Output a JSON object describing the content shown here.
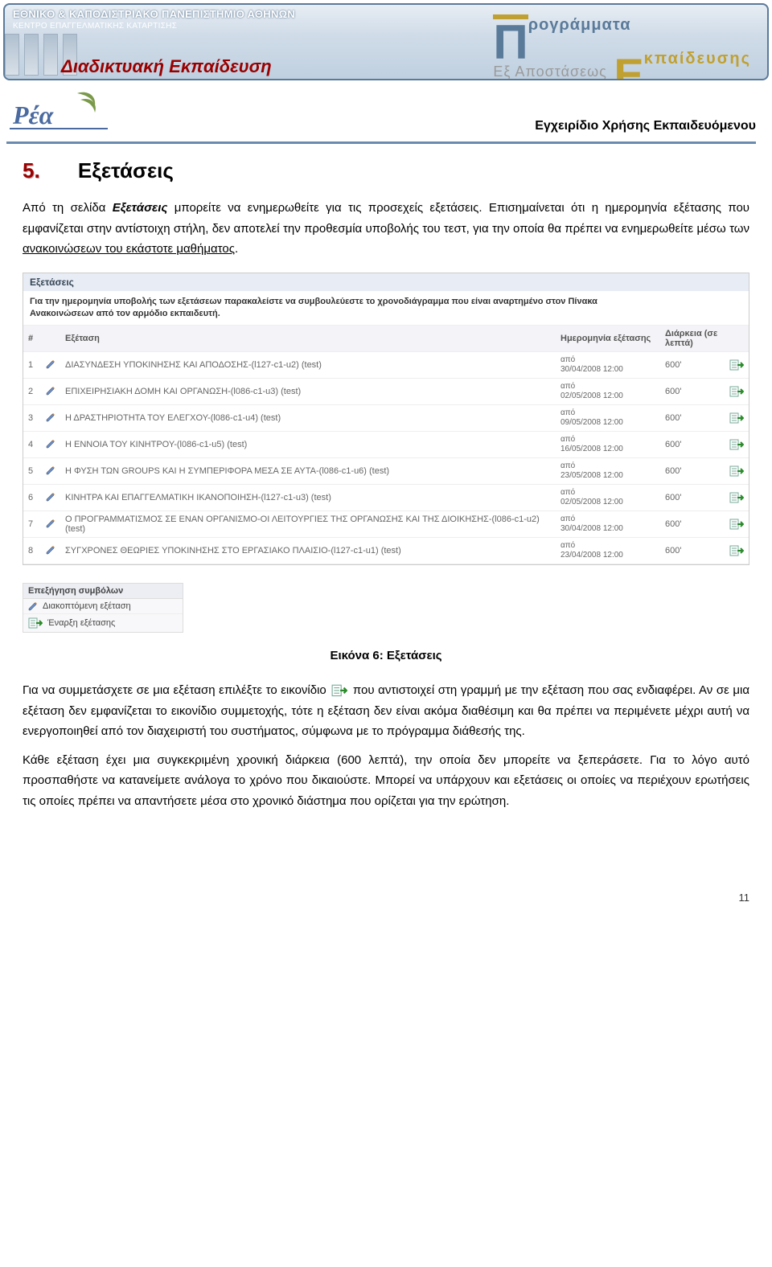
{
  "banner": {
    "university": "ΕΘΝΙΚΟ & ΚΑΠΟΔΙΣΤΡΙΑΚΟ ΠΑΝΕΠΙΣΤΗΜΙΟ ΑΘΗΝΩΝ",
    "center": "ΚΕΝΤΡΟ ΕΠΑΓΓΕΛΜΑΤΙΚΗΣ ΚΑΤΑΡΤΙΣΗΣ",
    "edu_title": "Διαδικτυακή  Εκπαίδευση",
    "big_p_word": "ρογράμματα",
    "ex_apo": "Εξ Αποστάσεως",
    "ekpaid_word": "κπαίδευσης"
  },
  "manual_title": "Εγχειρίδιο Χρήσης Εκπαιδευόμενου",
  "section": {
    "num": "5.",
    "title": "Εξετάσεις"
  },
  "para1": {
    "pre": "Από τη σελίδα ",
    "ital": "Εξετάσεις",
    "post": " μπορείτε να ενημερωθείτε για τις προσεχείς εξετάσεις. Επισημαίνεται ότι η ημερομηνία εξέτασης που εμφανίζεται στην αντίστοιχη στήλη, δεν αποτελεί την προθεσμία υποβολής του τεστ, για την οποία θα πρέπει να ενημερωθείτε μέσω των ",
    "under": "ανακοινώσεων του εκάστοτε μαθήματος",
    "tail": "."
  },
  "screenshot": {
    "panel_title": "Εξετάσεις",
    "desc_line1": "Για την ημερομηνία υποβολής των εξετάσεων παρακαλείστε να συμβουλεύεστε το χρονοδιάγραμμα που είναι αναρτημένο στον Πίνακα",
    "desc_line2": "Ανακοινώσεων από τον αρμόδιο εκπαιδευτή.",
    "columns": {
      "num": "#",
      "name": "Εξέταση",
      "date": "Ημερομηνία εξέτασης",
      "dur": "Διάρκεια (σε λεπτά)"
    },
    "apo": "από",
    "rows": [
      {
        "n": "1",
        "name": "ΔΙΑΣΥΝΔΕΣΗ ΥΠΟΚΙΝΗΣΗΣ ΚΑΙ ΑΠΟΔΟΣΗΣ-(l127-c1-u2) (test)",
        "date": "30/04/2008 12:00",
        "dur": "600'"
      },
      {
        "n": "2",
        "name": "ΕΠΙΧΕΙΡΗΣΙΑΚΗ ΔΟΜΗ ΚΑΙ ΟΡΓΑΝΩΣΗ-(l086-c1-u3) (test)",
        "date": "02/05/2008 12:00",
        "dur": "600'"
      },
      {
        "n": "3",
        "name": "Η ΔΡΑΣΤΗΡΙΟΤΗΤΑ ΤΟΥ ΕΛΕΓΧΟΥ-(l086-c1-u4) (test)",
        "date": "09/05/2008 12:00",
        "dur": "600'"
      },
      {
        "n": "4",
        "name": "Η ΕΝΝΟΙΑ ΤΟΥ ΚΙΝΗΤΡΟΥ-(l086-c1-u5) (test)",
        "date": "16/05/2008 12:00",
        "dur": "600'"
      },
      {
        "n": "5",
        "name": "Η ΦΥΣΗ ΤΩΝ GROUPS ΚΑΙ Η ΣΥΜΠΕΡΙΦΟΡΑ ΜΕΣΑ ΣΕ ΑΥΤΑ-(l086-c1-u6) (test)",
        "date": "23/05/2008 12:00",
        "dur": "600'"
      },
      {
        "n": "6",
        "name": "ΚΙΝΗΤΡΑ ΚΑΙ ΕΠΑΓΓΕΛΜΑΤΙΚΗ ΙΚΑΝΟΠΟΙΗΣΗ-(l127-c1-u3) (test)",
        "date": "02/05/2008 12:00",
        "dur": "600'"
      },
      {
        "n": "7",
        "name": "Ο ΠΡΟΓΡΑΜΜΑΤΙΣΜΟΣ ΣΕ ΕΝΑΝ ΟΡΓΑΝΙΣΜΟ-ΟΙ ΛΕΙΤΟΥΡΓΙΕΣ ΤΗΣ ΟΡΓΑΝΩΣΗΣ ΚΑΙ ΤΗΣ ΔΙΟΙΚΗΣΗΣ-(l086-c1-u2) (test)",
        "date": "30/04/2008 12:00",
        "dur": "600'"
      },
      {
        "n": "8",
        "name": "ΣΥΓΧΡΟΝΕΣ ΘΕΩΡΙΕΣ ΥΠΟΚΙΝΗΣΗΣ ΣΤΟ ΕΡΓΑΣΙΑΚΟ ΠΛΑΙΣΙΟ-(l127-c1-u1) (test)",
        "date": "23/04/2008 12:00",
        "dur": "600'"
      }
    ],
    "legend": {
      "title": "Επεξήγηση συμβόλων",
      "interrupted": "Διακοπτόμενη εξέταση",
      "start": "Έναρξη εξέτασης"
    }
  },
  "caption": "Εικόνα 6: Εξετάσεις",
  "para2": {
    "pre": "Για να συμμετάσχετε σε μια εξέταση επιλέξτε το εικονίδιο ",
    "post": " που αντιστοιχεί στη γραμμή με την εξέταση που σας ενδιαφέρει. Αν σε μια εξέταση δεν εμφανίζεται το εικονίδιο συμμετοχής, τότε η εξέταση δεν είναι ακόμα διαθέσιμη και θα πρέπει να περιμένετε μέχρι αυτή να ενεργοποιηθεί από τον διαχειριστή του συστήματος, σύμφωνα με το πρόγραμμα διάθεσής της."
  },
  "para3": "Κάθε εξέταση έχει μια συγκεκριμένη χρονική διάρκεια (600 λεπτά), την οποία δεν μπορείτε να ξεπεράσετε. Για το λόγο αυτό προσπαθήστε να κατανείμετε ανάλογα το χρόνο που δικαιούστε. Μπορεί να υπάρχουν και εξετάσεις οι οποίες να περιέχουν ερωτήσεις τις οποίες πρέπει να απαντήσετε μέσα στο χρονικό διάστημα που ορίζεται για την ερώτηση.",
  "page_number": "11",
  "colors": {
    "accent_red": "#990000",
    "accent_gold": "#c0a030",
    "banner_border": "#5a7a9a",
    "text_gray": "#666666"
  }
}
